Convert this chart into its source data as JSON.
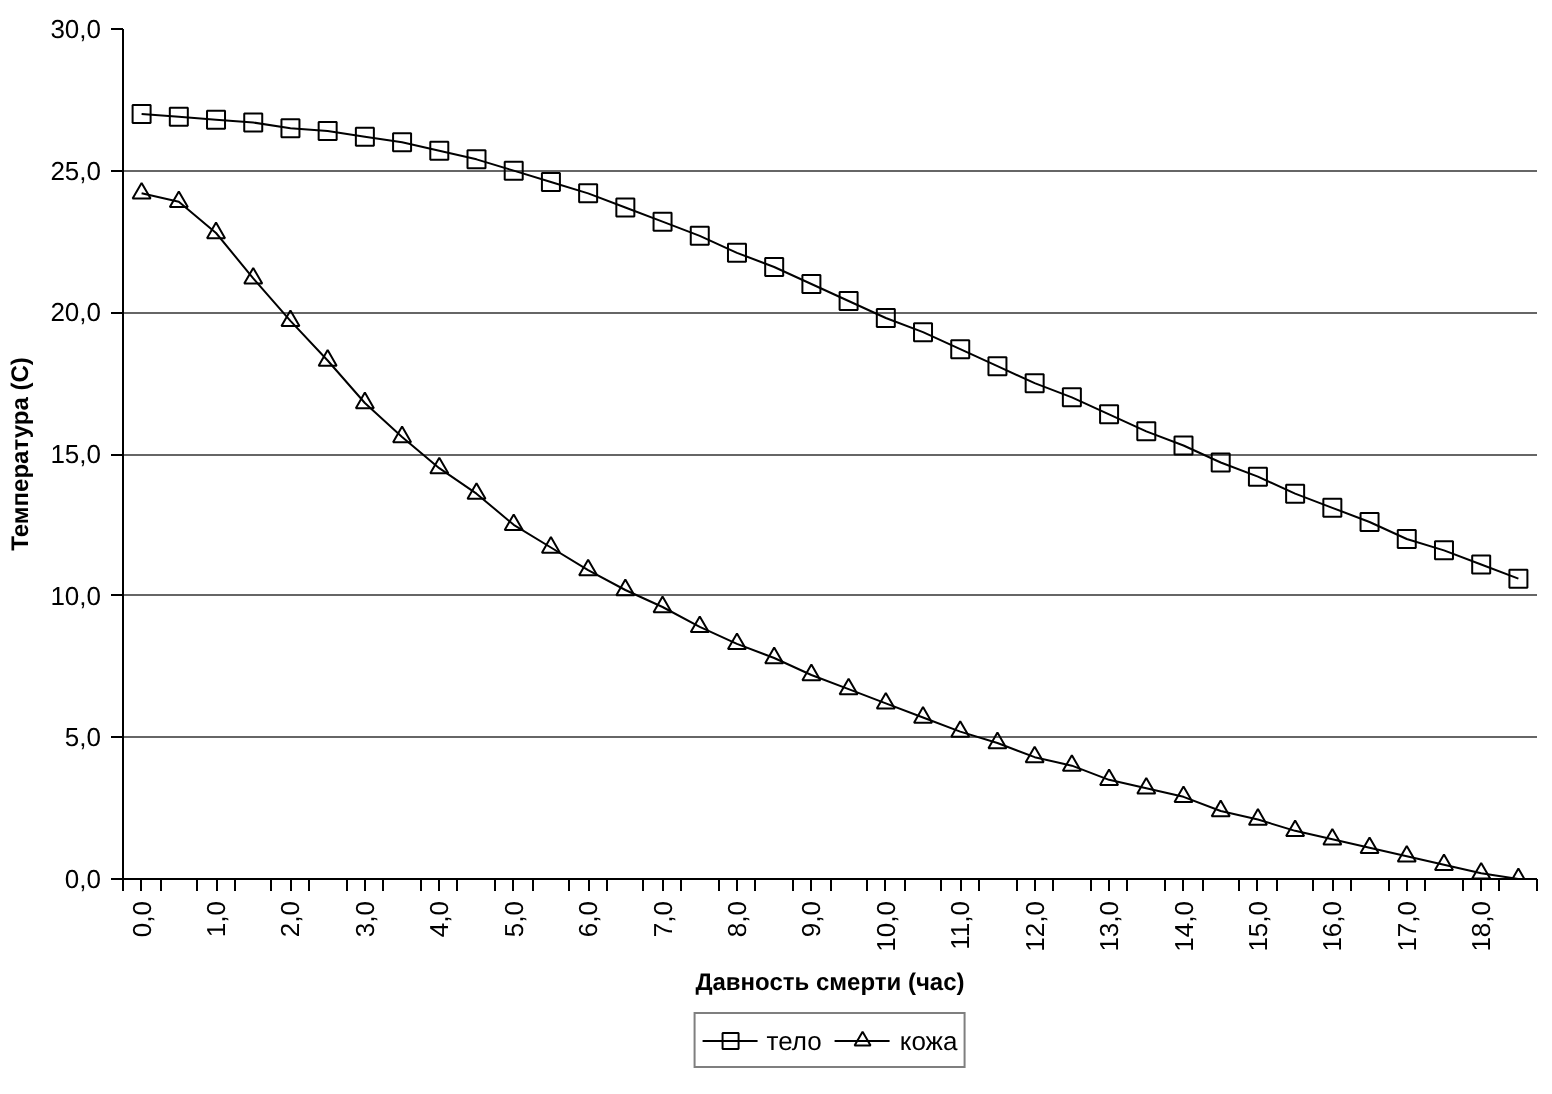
{
  "chart_data": {
    "type": "line",
    "xlabel": "Давность смерти (час)",
    "ylabel": "Температура (С)",
    "x": [
      0,
      0.5,
      1,
      1.5,
      2,
      2.5,
      3,
      3.5,
      4,
      4.5,
      5,
      5.5,
      6,
      6.5,
      7,
      7.5,
      8,
      8.5,
      9,
      9.5,
      10,
      10.5,
      11,
      11.5,
      12,
      12.5,
      13,
      13.5,
      14,
      14.5,
      15,
      15.5,
      16,
      16.5,
      17,
      17.5,
      18,
      18.5
    ],
    "series": [
      {
        "name": "тело",
        "color": "#000000",
        "marker": "square",
        "values": [
          27.0,
          26.9,
          26.8,
          26.7,
          26.5,
          26.4,
          26.2,
          26.0,
          25.7,
          25.4,
          25.0,
          24.6,
          24.2,
          23.7,
          23.2,
          22.7,
          22.1,
          21.6,
          21.0,
          20.4,
          19.8,
          19.3,
          18.7,
          18.1,
          17.5,
          17.0,
          16.4,
          15.8,
          15.3,
          14.7,
          14.2,
          13.6,
          13.1,
          12.6,
          12.0,
          11.6,
          11.1,
          10.6
        ]
      },
      {
        "name": "кожа",
        "color": "#000000",
        "marker": "triangle",
        "values": [
          24.2,
          23.9,
          22.8,
          21.2,
          19.7,
          18.3,
          16.8,
          15.6,
          14.5,
          13.6,
          12.5,
          11.7,
          10.9,
          10.2,
          9.6,
          8.9,
          8.3,
          7.8,
          7.2,
          6.7,
          6.2,
          5.7,
          5.2,
          4.8,
          4.3,
          4.0,
          3.5,
          3.2,
          2.9,
          2.4,
          2.1,
          1.7,
          1.4,
          1.1,
          0.8,
          0.5,
          0.2,
          0
        ]
      }
    ],
    "xlim": [
      -0.25,
      18.75
    ],
    "xticks": [
      {
        "value": 0,
        "label": "0,0"
      },
      {
        "value": 1,
        "label": "1,0"
      },
      {
        "value": 2,
        "label": "2,0"
      },
      {
        "value": 3,
        "label": "3,0"
      },
      {
        "value": 4,
        "label": "4,0"
      },
      {
        "value": 5,
        "label": "5,0"
      },
      {
        "value": 6,
        "label": "6,0"
      },
      {
        "value": 7,
        "label": "7,0"
      },
      {
        "value": 8,
        "label": "8,0"
      },
      {
        "value": 9,
        "label": "9,0"
      },
      {
        "value": 10,
        "label": "10,0"
      },
      {
        "value": 11,
        "label": "11,0"
      },
      {
        "value": 12,
        "label": "12,0"
      },
      {
        "value": 13,
        "label": "13,0"
      },
      {
        "value": 14,
        "label": "14,0"
      },
      {
        "value": 15,
        "label": "15,0"
      },
      {
        "value": 16,
        "label": "16,0"
      },
      {
        "value": 17,
        "label": "17,0"
      },
      {
        "value": 18,
        "label": "18,0"
      },
      {
        "value": -0.25,
        "label": null
      },
      {
        "value": 0.25,
        "label": null
      },
      {
        "value": 0.75,
        "label": null
      },
      {
        "value": 1.25,
        "label": null
      },
      {
        "value": 1.75,
        "label": null
      },
      {
        "value": 2.25,
        "label": null
      },
      {
        "value": 2.75,
        "label": null
      },
      {
        "value": 3.25,
        "label": null
      },
      {
        "value": 3.75,
        "label": null
      },
      {
        "value": 4.25,
        "label": null
      },
      {
        "value": 4.75,
        "label": null
      },
      {
        "value": 5.25,
        "label": null
      },
      {
        "value": 5.75,
        "label": null
      },
      {
        "value": 6.25,
        "label": null
      },
      {
        "value": 6.75,
        "label": null
      },
      {
        "value": 7.25,
        "label": null
      },
      {
        "value": 7.75,
        "label": null
      },
      {
        "value": 8.25,
        "label": null
      },
      {
        "value": 8.75,
        "label": null
      },
      {
        "value": 9.25,
        "label": null
      },
      {
        "value": 9.75,
        "label": null
      },
      {
        "value": 10.25,
        "label": null
      },
      {
        "value": 10.75,
        "label": null
      },
      {
        "value": 11.25,
        "label": null
      },
      {
        "value": 11.75,
        "label": null
      },
      {
        "value": 12.25,
        "label": null
      },
      {
        "value": 12.75,
        "label": null
      },
      {
        "value": 13.25,
        "label": null
      },
      {
        "value": 13.75,
        "label": null
      },
      {
        "value": 14.25,
        "label": null
      },
      {
        "value": 14.75,
        "label": null
      },
      {
        "value": 15.25,
        "label": null
      },
      {
        "value": 15.75,
        "label": null
      },
      {
        "value": 16.25,
        "label": null
      },
      {
        "value": 16.75,
        "label": null
      },
      {
        "value": 17.25,
        "label": null
      },
      {
        "value": 17.75,
        "label": null
      },
      {
        "value": 18.25,
        "label": null
      },
      {
        "value": 18.75,
        "label": null
      }
    ],
    "ylim": [
      0,
      30
    ],
    "yticks": [
      {
        "value": 0,
        "label": "0,0"
      },
      {
        "value": 5,
        "label": "5,0"
      },
      {
        "value": 10,
        "label": "10,0"
      },
      {
        "value": 15,
        "label": "15,0"
      },
      {
        "value": 20,
        "label": "20,0"
      },
      {
        "value": 25,
        "label": "25,0"
      },
      {
        "value": 30,
        "label": "30,0"
      }
    ],
    "grid": "y",
    "legend": "bottom",
    "line_style": "solid"
  }
}
